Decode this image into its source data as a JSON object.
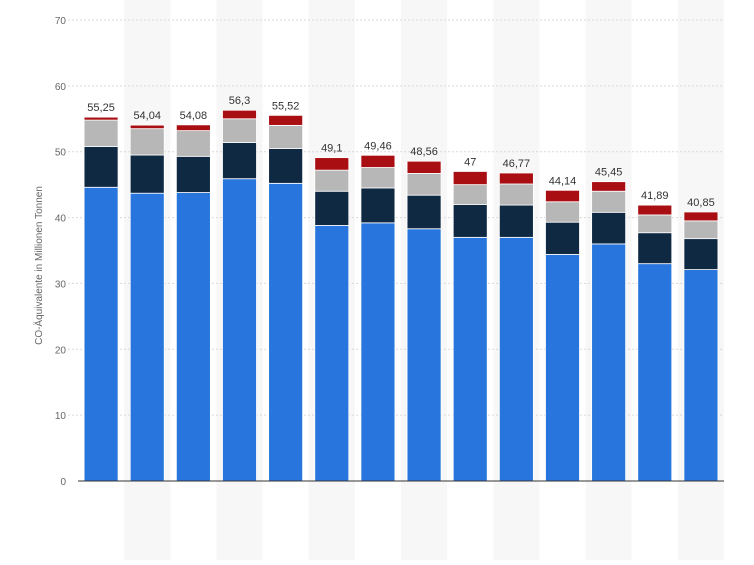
{
  "chart_data": {
    "type": "bar",
    "stacked": true,
    "ylabel": "CO-Äquivalente in Millionen Tonnen",
    "ylim": [
      0,
      70
    ],
    "yticks": [
      0,
      10,
      20,
      30,
      40,
      50,
      60,
      70
    ],
    "grid": true,
    "totals": [
      "55,25",
      "54,04",
      "54,08",
      "56,3",
      "55,52",
      "49,1",
      "49,46",
      "48,56",
      "47",
      "46,77",
      "44,14",
      "45,45",
      "41,89",
      "40,85"
    ],
    "series": [
      {
        "color": "#2876dd",
        "values": [
          44.6,
          43.7,
          43.8,
          45.9,
          45.2,
          38.8,
          39.2,
          38.3,
          37.0,
          37.0,
          34.4,
          36.0,
          33.0,
          32.1
        ]
      },
      {
        "color": "#0f2942",
        "values": [
          6.2,
          5.8,
          5.5,
          5.5,
          5.3,
          5.2,
          5.3,
          5.1,
          5.0,
          4.9,
          4.9,
          4.8,
          4.7,
          4.7
        ]
      },
      {
        "color": "#b7b7b7",
        "values": [
          4.0,
          4.0,
          3.9,
          3.6,
          3.5,
          3.2,
          3.1,
          3.3,
          3.0,
          3.2,
          3.1,
          3.2,
          2.7,
          2.7
        ]
      },
      {
        "color": "#a90e12",
        "values": [
          0.45,
          0.54,
          0.88,
          1.3,
          1.52,
          1.9,
          1.86,
          1.86,
          2.0,
          1.67,
          1.74,
          1.45,
          1.49,
          1.35
        ]
      }
    ]
  }
}
